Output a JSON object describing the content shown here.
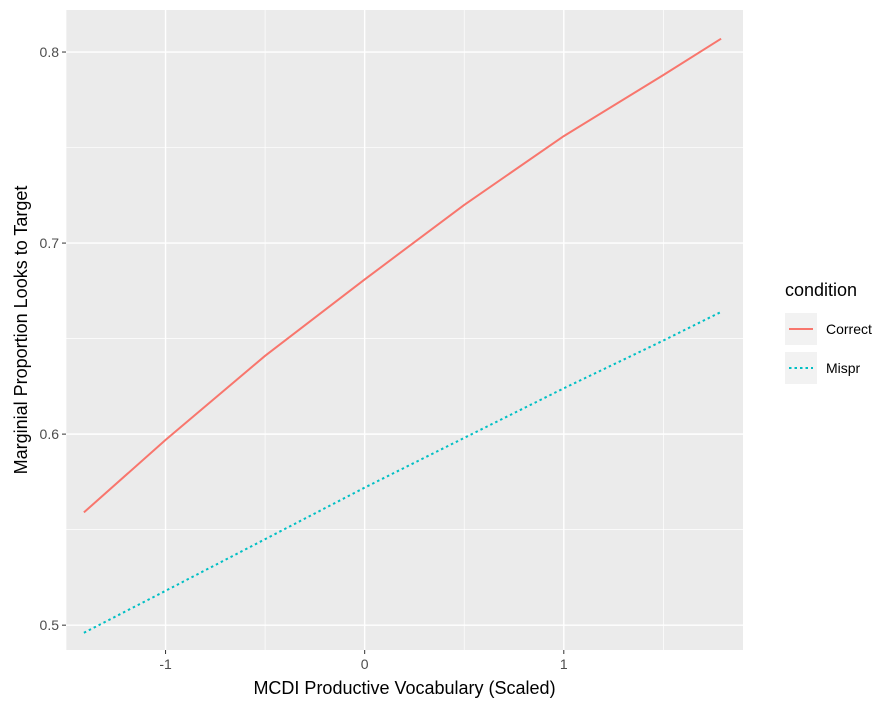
{
  "chart_data": {
    "type": "line",
    "title": "",
    "xlabel": "MCDI Productive Vocabulary (Scaled)",
    "ylabel": "Marginial Proportion Looks to Target",
    "xlim": [
      -1.5,
      1.9
    ],
    "ylim": [
      0.487,
      0.822
    ],
    "x_ticks": [
      -1,
      0,
      1
    ],
    "x_tick_labels": [
      "-1",
      "0",
      "1"
    ],
    "y_ticks": [
      0.5,
      0.6,
      0.7,
      0.8
    ],
    "y_tick_labels": [
      "0.5",
      "0.6",
      "0.7",
      "0.8"
    ],
    "grid": true,
    "legend": {
      "title": "condition",
      "position": "right"
    },
    "series": [
      {
        "name": "Correct",
        "color": "#F8766D",
        "line_style": "solid",
        "x": [
          -1.41,
          -1.0,
          -0.5,
          0.0,
          0.5,
          1.0,
          1.5,
          1.79
        ],
        "y": [
          0.559,
          0.597,
          0.641,
          0.681,
          0.72,
          0.756,
          0.788,
          0.807
        ]
      },
      {
        "name": "Mispr",
        "color": "#00BFC4",
        "line_style": "dotted",
        "x": [
          -1.41,
          -1.0,
          -0.5,
          0.0,
          0.5,
          1.0,
          1.5,
          1.79
        ],
        "y": [
          0.496,
          0.518,
          0.545,
          0.572,
          0.598,
          0.624,
          0.649,
          0.664
        ]
      }
    ]
  }
}
